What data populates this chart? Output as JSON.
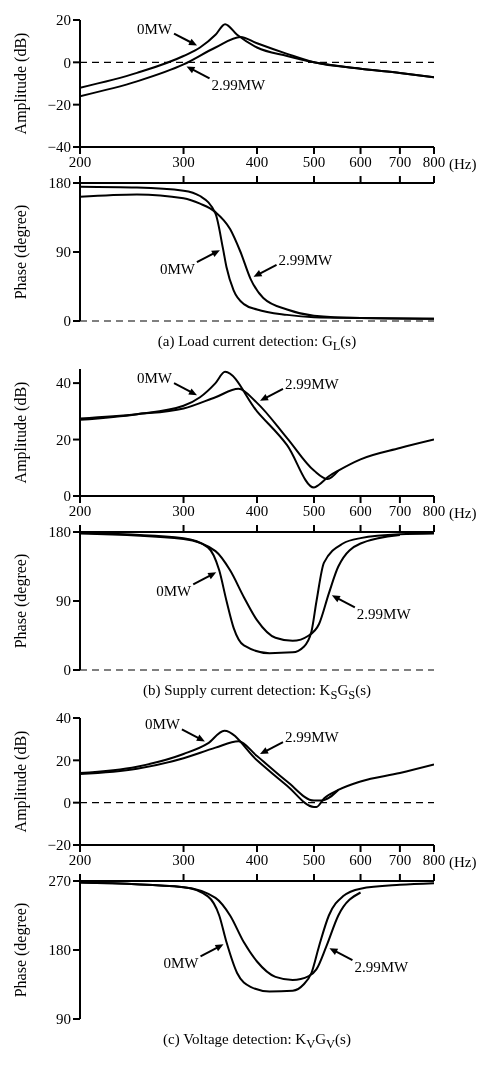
{
  "chart_data": [
    {
      "type": "line",
      "ylabel": "Amplitude (dB)",
      "xlabel": "(Hz)",
      "log": "x",
      "marker": "none",
      "xlim": [
        200,
        800
      ],
      "xticks": [
        200,
        300,
        400,
        500,
        600,
        700,
        800
      ],
      "ylim": [
        -40,
        20
      ],
      "yticks": [
        -40,
        -20,
        0,
        20
      ],
      "ref_lines": [
        {
          "axis": "y",
          "value": 0,
          "line_style": "dashed",
          "color": "#000000"
        }
      ],
      "series": [
        {
          "color": "#000000",
          "x": [
            200,
            250,
            300,
            320,
            340,
            353,
            370,
            400,
            450,
            500,
            600,
            700,
            800
          ],
          "values": [
            -12,
            -5,
            3,
            7,
            13,
            18,
            13,
            7,
            3,
            0,
            -3,
            -5,
            -7
          ]
        },
        {
          "color": "#000000",
          "x": [
            200,
            250,
            300,
            340,
            375,
            400,
            450,
            500,
            600,
            700,
            800
          ],
          "values": [
            -16,
            -9,
            -1,
            7,
            12,
            9,
            4,
            0,
            -3,
            -5,
            -7
          ]
        }
      ],
      "annotations": [
        {
          "text": "0MW",
          "x": 320,
          "y": 7
        },
        {
          "text": "2.99MW",
          "x": 300,
          "y": -1
        }
      ]
    },
    {
      "type": "line",
      "ylabel": "Phase (degree)",
      "title": "(a) Load current detection: G$_{L}$(s)",
      "log": "x",
      "marker": "none",
      "tick_labels": "y",
      "xlim": [
        200,
        800
      ],
      "xticks": [
        200,
        300,
        400,
        500,
        600,
        700,
        800
      ],
      "ylim": [
        0,
        180
      ],
      "yticks": [
        0,
        90,
        180
      ],
      "ref_lines": [
        {
          "axis": "y",
          "value": 0,
          "line_style": "dashed",
          "color": "#000000"
        }
      ],
      "series": [
        {
          "color": "#000000",
          "x": [
            200,
            250,
            300,
            320,
            340,
            350,
            355,
            365,
            380,
            400,
            450,
            500,
            600,
            800
          ],
          "values": [
            175,
            174,
            170,
            163,
            140,
            95,
            70,
            40,
            22,
            15,
            8,
            5,
            4,
            3
          ]
        },
        {
          "color": "#000000",
          "x": [
            200,
            250,
            300,
            320,
            340,
            360,
            375,
            390,
            410,
            450,
            500,
            600,
            800
          ],
          "values": [
            162,
            165,
            160,
            153,
            142,
            120,
            90,
            55,
            30,
            15,
            7,
            4,
            3
          ]
        }
      ],
      "annotations": [
        {
          "text": "0MW",
          "x": 350,
          "y": 95
        },
        {
          "text": "2.99MW",
          "x": 390,
          "y": 55
        }
      ]
    },
    {
      "type": "line",
      "ylabel": "Amplitude (dB)",
      "xlabel": "(Hz)",
      "log": "x",
      "marker": "none",
      "xlim": [
        200,
        800
      ],
      "xticks": [
        200,
        300,
        400,
        500,
        600,
        700,
        800
      ],
      "ylim": [
        0,
        45
      ],
      "yticks": [
        0,
        20,
        40
      ],
      "series": [
        {
          "color": "#000000",
          "x": [
            200,
            250,
            300,
            320,
            340,
            353,
            400,
            450,
            500,
            510,
            530,
            550,
            600,
            700,
            800
          ],
          "values": [
            27,
            29,
            32,
            35,
            40,
            44,
            30,
            18,
            3,
            4,
            7,
            9,
            13,
            17,
            20
          ]
        },
        {
          "color": "#000000",
          "x": [
            200,
            250,
            300,
            340,
            372,
            400,
            450,
            500,
            527,
            550
          ],
          "values": [
            27.5,
            29,
            31,
            35,
            38,
            33,
            20.5,
            9,
            6,
            9
          ]
        }
      ],
      "annotations": [
        {
          "text": "0MW",
          "x": 320,
          "y": 35
        },
        {
          "text": "2.99MW",
          "x": 400,
          "y": 33
        }
      ]
    },
    {
      "type": "line",
      "ylabel": "Phase (degree)",
      "title": "(b) Supply current detection: K$_{S}$G$_{S}$(s)",
      "log": "x",
      "marker": "none",
      "tick_labels": "y",
      "xlim": [
        200,
        800
      ],
      "xticks": [
        200,
        300,
        400,
        500,
        600,
        700,
        800
      ],
      "ylim": [
        0,
        180
      ],
      "yticks": [
        0,
        90,
        180
      ],
      "ref_lines": [
        {
          "axis": "y",
          "value": 0,
          "line_style": "dashed",
          "color": "#000000"
        }
      ],
      "series": [
        {
          "color": "#000000",
          "x": [
            200,
            300,
            330,
            345,
            355,
            365,
            380,
            420,
            460,
            480,
            495,
            505,
            520,
            560,
            600,
            700,
            800
          ],
          "values": [
            179,
            172,
            160,
            130,
            90,
            55,
            32,
            22,
            23,
            30,
            50,
            90,
            140,
            165,
            172,
            177,
            178
          ]
        },
        {
          "color": "#000000",
          "x": [
            200,
            300,
            340,
            360,
            380,
            400,
            430,
            460,
            490,
            510,
            530,
            550,
            600,
            700
          ],
          "values": [
            178,
            171,
            155,
            130,
            95,
            65,
            42,
            38,
            45,
            60,
            100,
            135,
            165,
            176
          ]
        }
      ],
      "annotations": [
        {
          "text": "0MW",
          "x": 345,
          "y": 130
        },
        {
          "text": "2.99MW",
          "x": 530,
          "y": 100
        }
      ]
    },
    {
      "type": "line",
      "ylabel": "Amplitude (dB)",
      "xlabel": "(Hz)",
      "log": "x",
      "marker": "none",
      "xlim": [
        200,
        800
      ],
      "xticks": [
        200,
        300,
        400,
        500,
        600,
        700,
        800
      ],
      "ylim": [
        -20,
        40
      ],
      "yticks": [
        -20,
        0,
        20,
        40
      ],
      "ref_lines": [
        {
          "axis": "y",
          "value": 0,
          "line_style": "dashed",
          "color": "#000000"
        }
      ],
      "series": [
        {
          "color": "#000000",
          "x": [
            200,
            250,
            300,
            330,
            352,
            400,
            450,
            500,
            505,
            520,
            550,
            600,
            700,
            800
          ],
          "values": [
            14,
            17,
            23,
            28,
            34,
            20,
            8,
            -2,
            -2,
            2,
            6,
            10,
            14,
            18
          ]
        },
        {
          "color": "#000000",
          "x": [
            200,
            250,
            300,
            340,
            372,
            400,
            450,
            500,
            515,
            550
          ],
          "values": [
            13.5,
            16,
            21,
            26,
            29,
            22,
            10,
            1,
            1,
            6
          ]
        }
      ],
      "annotations": [
        {
          "text": "0MW",
          "x": 330,
          "y": 28
        },
        {
          "text": "2.99MW",
          "x": 400,
          "y": 22
        }
      ]
    },
    {
      "type": "line",
      "ylabel": "Phase (degree)",
      "title": "(c) Voltage detection: K$_{V}$G$_{V}$(s)",
      "log": "x",
      "marker": "none",
      "tick_labels": "y",
      "xlim": [
        200,
        800
      ],
      "xticks": [
        200,
        300,
        400,
        500,
        600,
        700,
        800
      ],
      "ylim": [
        90,
        270
      ],
      "yticks": [
        90,
        180,
        270
      ],
      "series": [
        {
          "color": "#000000",
          "x": [
            200,
            300,
            330,
            345,
            355,
            370,
            390,
            420,
            460,
            480,
            495,
            510,
            530,
            560,
            600,
            700,
            800
          ],
          "values": [
            268,
            262,
            250,
            225,
            190,
            150,
            132,
            126,
            127,
            135,
            150,
            185,
            225,
            250,
            260,
            265,
            267
          ]
        },
        {
          "color": "#000000",
          "x": [
            200,
            300,
            340,
            360,
            380,
            400,
            430,
            460,
            490,
            505,
            525,
            550,
            600
          ],
          "values": [
            268,
            262,
            248,
            225,
            190,
            165,
            145,
            141,
            146,
            155,
            185,
            225,
            255
          ]
        }
      ],
      "annotations": [
        {
          "text": "0MW",
          "x": 355,
          "y": 190
        },
        {
          "text": "2.99MW",
          "x": 525,
          "y": 185
        }
      ]
    }
  ]
}
